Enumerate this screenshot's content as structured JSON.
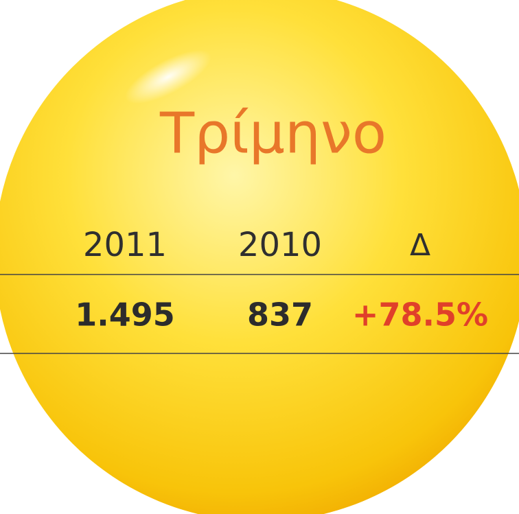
{
  "title": "Τρίμηνο",
  "table": {
    "header": [
      "2011",
      "2010",
      "Δ"
    ],
    "rows": [
      [
        "1.495",
        "837",
        "+78.5%"
      ]
    ]
  }
}
